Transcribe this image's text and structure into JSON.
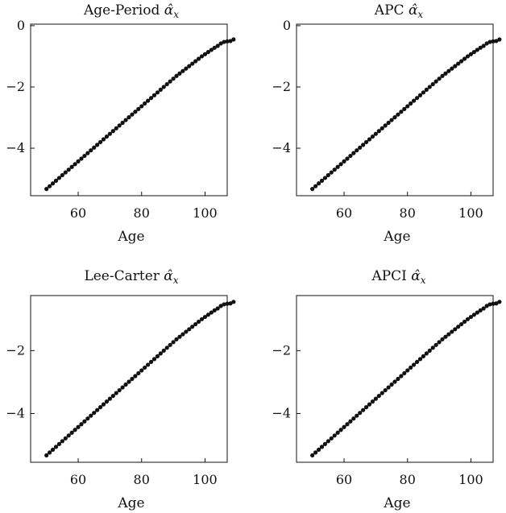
{
  "panels": [
    {
      "title_main": "Age-Period ",
      "title_sym": "α̂",
      "title_sub": "x"
    },
    {
      "title_main": "APC ",
      "title_sym": "α̂",
      "title_sub": "x"
    },
    {
      "title_main": "Lee-Carter ",
      "title_sym": "α̂",
      "title_sub": "x"
    },
    {
      "title_main": "APCI ",
      "title_sym": "α̂",
      "title_sub": "x"
    }
  ],
  "chart_data": [
    {
      "type": "scatter",
      "title": "Age-Period α̂x",
      "xlabel": "Age",
      "ylabel": "",
      "xlim": [
        45,
        107
      ],
      "ylim": [
        -5.55,
        0.05
      ],
      "xticks": [
        60,
        80,
        100
      ],
      "yticks": [
        0,
        -2,
        -4
      ],
      "xtick_labels": [
        "60",
        "80",
        "100"
      ],
      "ytick_labels": [
        "0",
        "−2",
        "−4"
      ],
      "x_start": 50,
      "y": [
        -5.33,
        -5.24,
        -5.15,
        -5.06,
        -4.97,
        -4.88,
        -4.79,
        -4.7,
        -4.61,
        -4.52,
        -4.43,
        -4.34,
        -4.25,
        -4.16,
        -4.07,
        -3.98,
        -3.89,
        -3.8,
        -3.71,
        -3.62,
        -3.53,
        -3.44,
        -3.35,
        -3.26,
        -3.17,
        -3.08,
        -2.99,
        -2.9,
        -2.81,
        -2.72,
        -2.63,
        -2.54,
        -2.45,
        -2.36,
        -2.27,
        -2.18,
        -2.09,
        -2.0,
        -1.91,
        -1.82,
        -1.73,
        -1.64,
        -1.56,
        -1.48,
        -1.4,
        -1.32,
        -1.24,
        -1.16,
        -1.08,
        -1.0,
        -0.93,
        -0.86,
        -0.79,
        -0.72,
        -0.66,
        -0.58,
        -0.53,
        -0.51,
        -0.5,
        -0.45
      ]
    },
    {
      "type": "scatter",
      "title": "APC α̂x",
      "xlabel": "Age",
      "ylabel": "",
      "xlim": [
        45,
        107
      ],
      "ylim": [
        -5.55,
        0.05
      ],
      "xticks": [
        60,
        80,
        100
      ],
      "yticks": [
        0,
        -2,
        -4
      ],
      "xtick_labels": [
        "60",
        "80",
        "100"
      ],
      "ytick_labels": [
        "0",
        "−2",
        "−4"
      ],
      "x_start": 50,
      "y": [
        -5.33,
        -5.24,
        -5.15,
        -5.06,
        -4.97,
        -4.88,
        -4.79,
        -4.7,
        -4.61,
        -4.52,
        -4.43,
        -4.34,
        -4.25,
        -4.16,
        -4.07,
        -3.98,
        -3.89,
        -3.8,
        -3.71,
        -3.62,
        -3.53,
        -3.44,
        -3.35,
        -3.26,
        -3.17,
        -3.08,
        -2.99,
        -2.9,
        -2.81,
        -2.72,
        -2.63,
        -2.54,
        -2.45,
        -2.36,
        -2.27,
        -2.18,
        -2.09,
        -2.0,
        -1.91,
        -1.82,
        -1.73,
        -1.64,
        -1.56,
        -1.48,
        -1.4,
        -1.32,
        -1.24,
        -1.16,
        -1.08,
        -1.0,
        -0.93,
        -0.86,
        -0.79,
        -0.72,
        -0.66,
        -0.58,
        -0.53,
        -0.51,
        -0.5,
        -0.45
      ]
    },
    {
      "type": "scatter",
      "title": "Lee-Carter α̂x",
      "xlabel": "Age",
      "ylabel": "",
      "xlim": [
        45,
        107
      ],
      "ylim": [
        -5.55,
        -0.25
      ],
      "xticks": [
        60,
        80,
        100
      ],
      "yticks": [
        -2,
        -4
      ],
      "xtick_labels": [
        "60",
        "80",
        "100"
      ],
      "ytick_labels": [
        "−2",
        "−4"
      ],
      "x_start": 50,
      "y": [
        -5.33,
        -5.24,
        -5.15,
        -5.06,
        -4.97,
        -4.88,
        -4.79,
        -4.7,
        -4.61,
        -4.52,
        -4.43,
        -4.34,
        -4.25,
        -4.16,
        -4.07,
        -3.98,
        -3.89,
        -3.8,
        -3.71,
        -3.62,
        -3.53,
        -3.44,
        -3.35,
        -3.26,
        -3.17,
        -3.08,
        -2.99,
        -2.9,
        -2.81,
        -2.72,
        -2.63,
        -2.54,
        -2.45,
        -2.36,
        -2.27,
        -2.18,
        -2.09,
        -2.0,
        -1.91,
        -1.82,
        -1.73,
        -1.64,
        -1.56,
        -1.48,
        -1.4,
        -1.32,
        -1.24,
        -1.16,
        -1.08,
        -1.0,
        -0.93,
        -0.86,
        -0.79,
        -0.72,
        -0.66,
        -0.58,
        -0.53,
        -0.51,
        -0.5,
        -0.45
      ]
    },
    {
      "type": "scatter",
      "title": "APCI α̂x",
      "xlabel": "Age",
      "ylabel": "",
      "xlim": [
        45,
        107
      ],
      "ylim": [
        -5.55,
        -0.25
      ],
      "xticks": [
        60,
        80,
        100
      ],
      "yticks": [
        -2,
        -4
      ],
      "xtick_labels": [
        "60",
        "80",
        "100"
      ],
      "ytick_labels": [
        "−2",
        "−4"
      ],
      "x_start": 50,
      "y": [
        -5.33,
        -5.24,
        -5.15,
        -5.06,
        -4.97,
        -4.88,
        -4.79,
        -4.7,
        -4.61,
        -4.52,
        -4.43,
        -4.34,
        -4.25,
        -4.16,
        -4.07,
        -3.98,
        -3.89,
        -3.8,
        -3.71,
        -3.62,
        -3.53,
        -3.44,
        -3.35,
        -3.26,
        -3.17,
        -3.08,
        -2.99,
        -2.9,
        -2.81,
        -2.72,
        -2.63,
        -2.54,
        -2.45,
        -2.36,
        -2.27,
        -2.18,
        -2.09,
        -2.0,
        -1.91,
        -1.82,
        -1.73,
        -1.64,
        -1.56,
        -1.48,
        -1.4,
        -1.32,
        -1.24,
        -1.16,
        -1.08,
        -1.0,
        -0.93,
        -0.86,
        -0.79,
        -0.72,
        -0.66,
        -0.58,
        -0.53,
        -0.51,
        -0.5,
        -0.45
      ]
    }
  ]
}
